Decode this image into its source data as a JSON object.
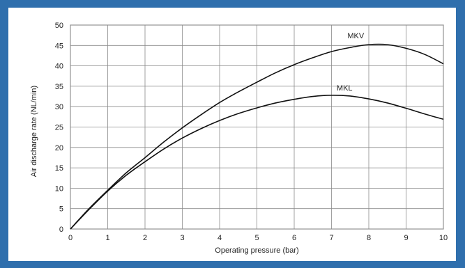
{
  "chart_data": {
    "type": "line",
    "title": "",
    "xlabel": "Operating pressure (bar)",
    "ylabel": "Air discharge rate (NL/min)",
    "xlim": [
      0,
      10
    ],
    "ylim": [
      0,
      50
    ],
    "x_ticks": [
      "0",
      "1",
      "2",
      "3",
      "4",
      "5",
      "6",
      "7",
      "8",
      "9",
      "10"
    ],
    "y_ticks": [
      "0",
      "5",
      "10",
      "15",
      "20",
      "25",
      "30",
      "35",
      "40",
      "45",
      "50"
    ],
    "grid": true,
    "legend": "none",
    "series": [
      {
        "name": "MKV",
        "x": [
          0,
          0.5,
          1,
          1.5,
          2,
          2.5,
          3,
          3.5,
          4,
          4.5,
          5,
          5.5,
          6,
          6.5,
          7,
          7.5,
          8,
          8.5,
          9,
          9.5,
          10
        ],
        "values": [
          0,
          5,
          9.5,
          13.8,
          17.5,
          21.3,
          24.8,
          28,
          31,
          33.6,
          36,
          38.3,
          40.3,
          42,
          43.5,
          44.5,
          45.2,
          45.2,
          44.3,
          42.8,
          40.5
        ]
      },
      {
        "name": "MKL",
        "x": [
          0,
          0.5,
          1,
          1.5,
          2,
          2.5,
          3,
          3.5,
          4,
          4.5,
          5,
          5.5,
          6,
          6.5,
          7,
          7.5,
          8,
          8.5,
          9,
          9.5,
          10
        ],
        "values": [
          0,
          4.8,
          9.3,
          13.2,
          16.5,
          19.6,
          22.3,
          24.6,
          26.6,
          28.3,
          29.7,
          30.9,
          31.8,
          32.5,
          32.8,
          32.6,
          31.9,
          30.9,
          29.6,
          28.2,
          26.9
        ]
      }
    ]
  }
}
